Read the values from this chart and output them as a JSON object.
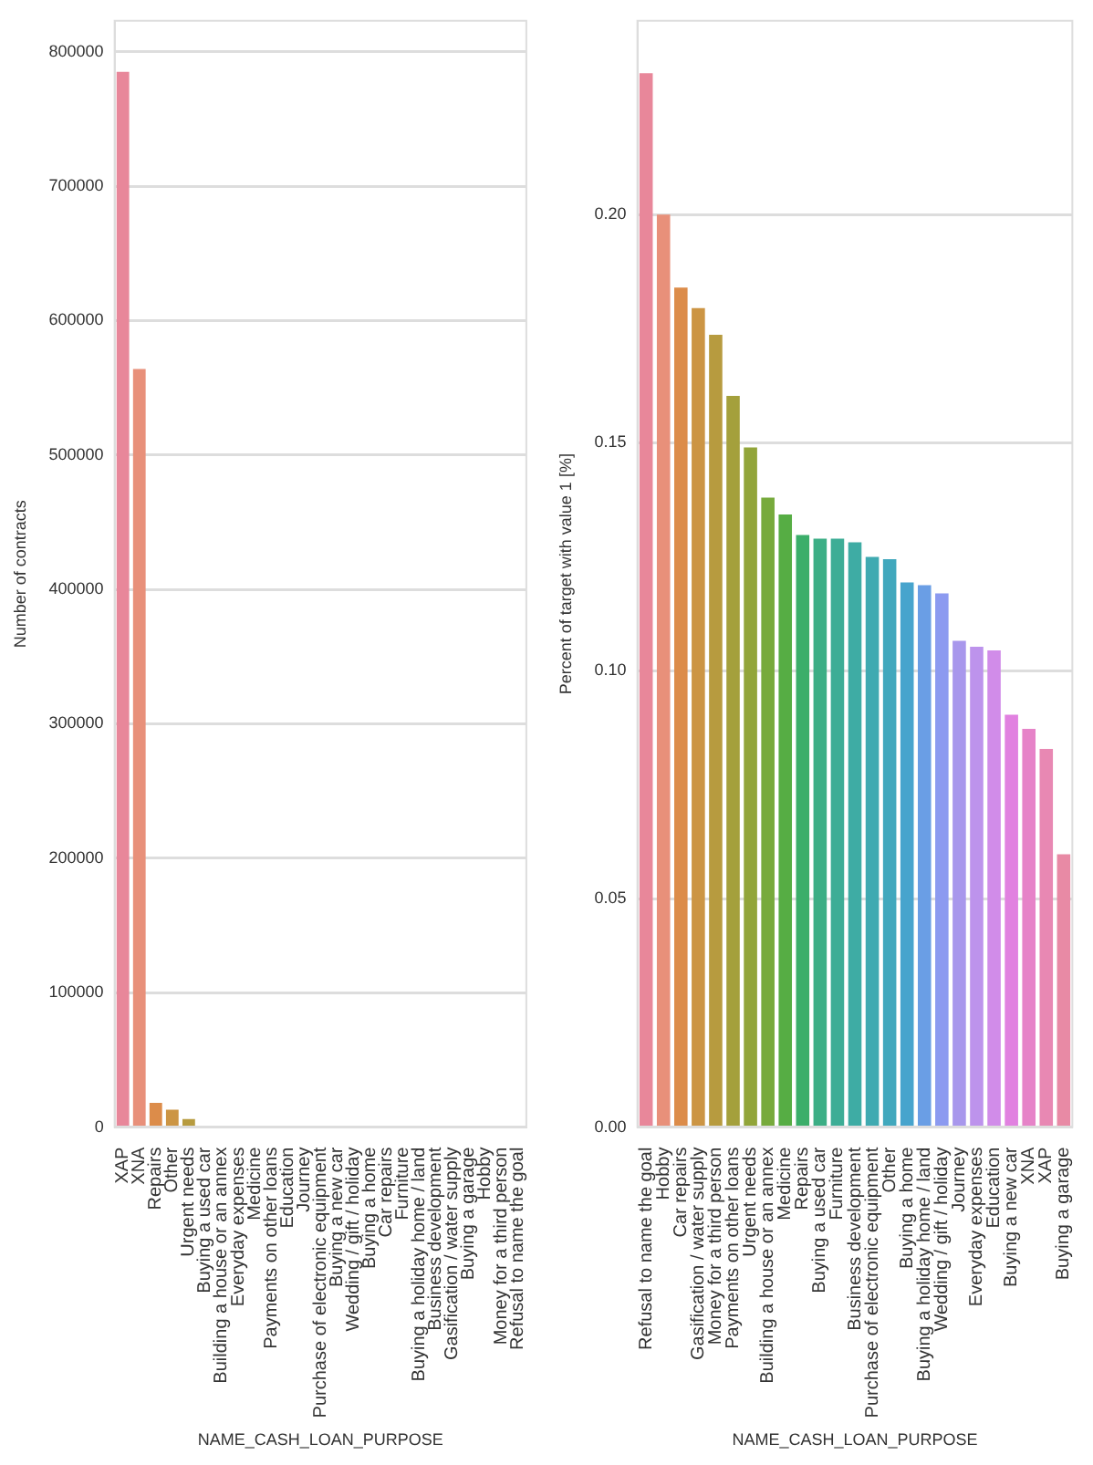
{
  "chart_data": [
    {
      "type": "bar",
      "xlabel": "NAME_CASH_LOAN_PURPOSE",
      "ylabel": "Number of contracts",
      "categories": [
        "XAP",
        "XNA",
        "Repairs",
        "Other",
        "Urgent needs",
        "Buying a used car",
        "Building a house or an annex",
        "Everyday expenses",
        "Medicine",
        "Payments on other loans",
        "Education",
        "Journey",
        "Purchase of electronic equipment",
        "Buying a new car",
        "Wedding / gift / holiday",
        "Buying a home",
        "Car repairs",
        "Furniture",
        "Buying a holiday home / land",
        "Business development",
        "Gasification / water supply",
        "Buying a garage",
        "Hobby",
        "Money for a third person",
        "Refusal to name the goal"
      ],
      "values": [
        785000,
        564000,
        18000,
        13000,
        6000,
        null,
        null,
        null,
        null,
        null,
        null,
        null,
        null,
        null,
        null,
        null,
        null,
        null,
        null,
        null,
        null,
        null,
        null,
        null,
        null
      ],
      "colors": [
        "#e8879a",
        "#e8907a",
        "#dc8c4a",
        "#cc9544",
        "#b79b3f",
        "#a4a03c",
        "#92a53a",
        "#77aa3c",
        "#56ad44",
        "#3bae6a",
        "#3cae85",
        "#3dad96",
        "#3eaca4",
        "#3faab1",
        "#41a8bd",
        "#47a4cd",
        "#6a9ee5",
        "#8c9af0",
        "#a897ec",
        "#bd93ec",
        "#d18ce9",
        "#e181e0",
        "#e683c8",
        "#e888b3",
        "#e88aa5"
      ],
      "ylim": [
        0,
        823000
      ],
      "yticks": [
        0,
        100000,
        200000,
        300000,
        400000,
        500000,
        600000,
        700000,
        800000
      ],
      "grid": "y"
    },
    {
      "type": "bar",
      "xlabel": "NAME_CASH_LOAN_PURPOSE",
      "ylabel": "Percent of target with value 1 [%]",
      "categories": [
        "Refusal to name the goal",
        "Hobby",
        "Car repairs",
        "Gasification / water supply",
        "Money for a third person",
        "Payments on other loans",
        "Urgent needs",
        "Building a house or an annex",
        "Medicine",
        "Repairs",
        "Buying a used car",
        "Furniture",
        "Business development",
        "Purchase of electronic equipment",
        "Other",
        "Buying a home",
        "Buying a holiday home / land",
        "Wedding / gift / holiday",
        "Journey",
        "Everyday expenses",
        "Education",
        "Buying a new car",
        "XNA",
        "XAP",
        "Buying a garage"
      ],
      "values": [
        0.231,
        0.2,
        0.184,
        0.1795,
        0.1737,
        0.1603,
        0.149,
        0.138,
        0.1343,
        0.1298,
        0.129,
        0.129,
        0.1282,
        0.125,
        0.1245,
        0.1194,
        0.1188,
        0.117,
        0.1066,
        0.1053,
        0.1045,
        0.0904,
        0.0873,
        0.0829,
        0.0598
      ],
      "colors": [
        "#e8879a",
        "#e8907a",
        "#dc8c4a",
        "#cc9544",
        "#b79b3f",
        "#a4a03c",
        "#92a53a",
        "#77aa3c",
        "#56ad44",
        "#3bae6a",
        "#3cae85",
        "#3dad96",
        "#3eaca4",
        "#3faab1",
        "#41a8bd",
        "#47a4cd",
        "#6a9ee5",
        "#8c9af0",
        "#a897ec",
        "#bd93ec",
        "#d18ce9",
        "#e181e0",
        "#e683c8",
        "#e888b3",
        "#e88aa5"
      ],
      "ylim": [
        0,
        0.2425
      ],
      "yticks": [
        {
          "value": 0,
          "label": "0.00"
        },
        {
          "value": 0.05,
          "label": "0.05"
        },
        {
          "value": 0.1,
          "label": "0.10"
        },
        {
          "value": 0.15,
          "label": "0.15"
        },
        {
          "value": 0.2,
          "label": "0.20"
        }
      ],
      "grid": "y"
    }
  ]
}
